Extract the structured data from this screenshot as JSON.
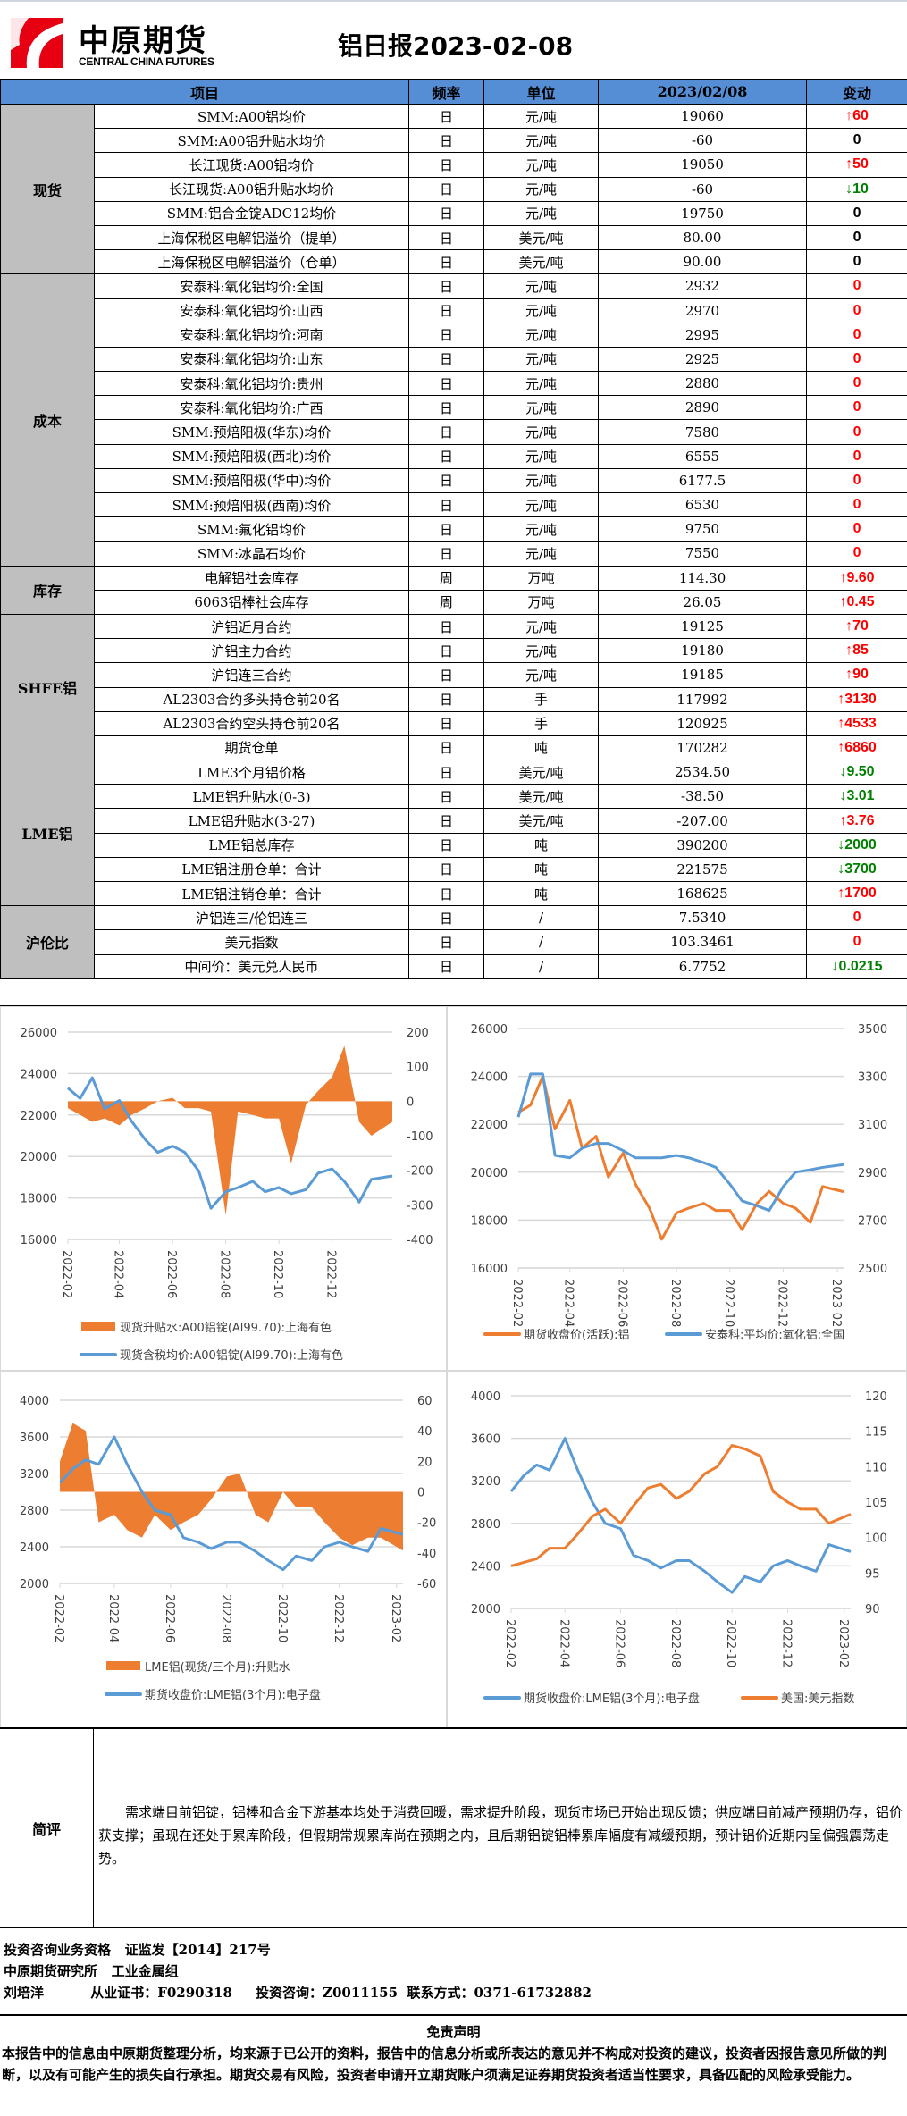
{
  "header": {
    "logo_cn": "中原期货",
    "logo_en": "CENTRAL CHINA FUTURES",
    "title": "铝日报2023-02-08",
    "brand_color": "#e60012"
  },
  "table": {
    "columns": [
      "项目",
      "频率",
      "单位",
      "2023/02/08",
      "变动"
    ],
    "header_color": "#558ed5",
    "groups": [
      {
        "category": "现货",
        "rows": [
          {
            "item": "SMM:A00铝均价",
            "freq": "日",
            "unit": "元/吨",
            "value": "19060",
            "change": "60",
            "dir": "up"
          },
          {
            "item": "SMM:A00铝升贴水均价",
            "freq": "日",
            "unit": "元/吨",
            "value": "-60",
            "change": "0",
            "dir": "flat"
          },
          {
            "item": "长江现货:A00铝均价",
            "freq": "日",
            "unit": "元/吨",
            "value": "19050",
            "change": "50",
            "dir": "up"
          },
          {
            "item": "长江现货:A00铝升贴水均价",
            "freq": "日",
            "unit": "元/吨",
            "value": "-60",
            "change": "10",
            "dir": "down"
          },
          {
            "item": "SMM:铝合金锭ADC12均价",
            "freq": "日",
            "unit": "元/吨",
            "value": "19750",
            "change": "0",
            "dir": "flat"
          },
          {
            "item": "上海保税区电解铝溢价（提单）",
            "freq": "日",
            "unit": "美元/吨",
            "value": "80.00",
            "change": "0",
            "dir": "flat"
          },
          {
            "item": "上海保税区电解铝溢价（仓单）",
            "freq": "日",
            "unit": "美元/吨",
            "value": "90.00",
            "change": "0",
            "dir": "flat"
          }
        ]
      },
      {
        "category": "成本",
        "rows": [
          {
            "item": "安泰科:氧化铝均价:全国",
            "freq": "日",
            "unit": "元/吨",
            "value": "2932",
            "change": "0",
            "dir": "flat-red"
          },
          {
            "item": "安泰科:氧化铝均价:山西",
            "freq": "日",
            "unit": "元/吨",
            "value": "2970",
            "change": "0",
            "dir": "flat-red"
          },
          {
            "item": "安泰科:氧化铝均价:河南",
            "freq": "日",
            "unit": "元/吨",
            "value": "2995",
            "change": "0",
            "dir": "flat-red"
          },
          {
            "item": "安泰科:氧化铝均价:山东",
            "freq": "日",
            "unit": "元/吨",
            "value": "2925",
            "change": "0",
            "dir": "flat-red"
          },
          {
            "item": "安泰科:氧化铝均价:贵州",
            "freq": "日",
            "unit": "元/吨",
            "value": "2880",
            "change": "0",
            "dir": "flat-red"
          },
          {
            "item": "安泰科:氧化铝均价:广西",
            "freq": "日",
            "unit": "元/吨",
            "value": "2890",
            "change": "0",
            "dir": "flat-red"
          },
          {
            "item": "SMM:预焙阳极(华东)均价",
            "freq": "日",
            "unit": "元/吨",
            "value": "7580",
            "change": "0",
            "dir": "flat-red"
          },
          {
            "item": "SMM:预焙阳极(西北)均价",
            "freq": "日",
            "unit": "元/吨",
            "value": "6555",
            "change": "0",
            "dir": "flat-red"
          },
          {
            "item": "SMM:预焙阳极(华中)均价",
            "freq": "日",
            "unit": "元/吨",
            "value": "6177.5",
            "change": "0",
            "dir": "flat-red"
          },
          {
            "item": "SMM:预焙阳极(西南)均价",
            "freq": "日",
            "unit": "元/吨",
            "value": "6530",
            "change": "0",
            "dir": "flat-red"
          },
          {
            "item": "SMM:氟化铝均价",
            "freq": "日",
            "unit": "元/吨",
            "value": "9750",
            "change": "0",
            "dir": "flat-red"
          },
          {
            "item": "SMM:冰晶石均价",
            "freq": "日",
            "unit": "元/吨",
            "value": "7550",
            "change": "0",
            "dir": "flat-red"
          }
        ]
      },
      {
        "category": "库存",
        "rows": [
          {
            "item": "电解铝社会库存",
            "freq": "周",
            "unit": "万吨",
            "value": "114.30",
            "change": "9.60",
            "dir": "up"
          },
          {
            "item": "6063铝棒社会库存",
            "freq": "周",
            "unit": "万吨",
            "value": "26.05",
            "change": "0.45",
            "dir": "up"
          }
        ]
      },
      {
        "category": "SHFE铝",
        "rows": [
          {
            "item": "沪铝近月合约",
            "freq": "日",
            "unit": "元/吨",
            "value": "19125",
            "change": "70",
            "dir": "up"
          },
          {
            "item": "沪铝主力合约",
            "freq": "日",
            "unit": "元/吨",
            "value": "19180",
            "change": "85",
            "dir": "up"
          },
          {
            "item": "沪铝连三合约",
            "freq": "日",
            "unit": "元/吨",
            "value": "19185",
            "change": "90",
            "dir": "up"
          },
          {
            "item": "AL2303合约多头持仓前20名",
            "freq": "日",
            "unit": "手",
            "value": "117992",
            "change": "3130",
            "dir": "up"
          },
          {
            "item": "AL2303合约空头持仓前20名",
            "freq": "日",
            "unit": "手",
            "value": "120925",
            "change": "4533",
            "dir": "up"
          },
          {
            "item": "期货仓单",
            "freq": "日",
            "unit": "吨",
            "value": "170282",
            "change": "6860",
            "dir": "up"
          }
        ]
      },
      {
        "category": "LME铝",
        "rows": [
          {
            "item": "LME3个月铝价格",
            "freq": "日",
            "unit": "美元/吨",
            "value": "2534.50",
            "change": "9.50",
            "dir": "down"
          },
          {
            "item": "LME铝升贴水(0-3)",
            "freq": "日",
            "unit": "美元/吨",
            "value": "-38.50",
            "change": "3.01",
            "dir": "down"
          },
          {
            "item": "LME铝升贴水(3-27)",
            "freq": "日",
            "unit": "美元/吨",
            "value": "-207.00",
            "change": "3.76",
            "dir": "up"
          },
          {
            "item": "LME铝总库存",
            "freq": "日",
            "unit": "吨",
            "value": "390200",
            "change": "2000",
            "dir": "down"
          },
          {
            "item": "LME铝注册仓单：合计",
            "freq": "日",
            "unit": "吨",
            "value": "221575",
            "change": "3700",
            "dir": "down"
          },
          {
            "item": "LME铝注销仓单：合计",
            "freq": "日",
            "unit": "吨",
            "value": "168625",
            "change": "1700",
            "dir": "up"
          }
        ]
      },
      {
        "category": "沪伦比",
        "rows": [
          {
            "item": "沪铝连三/伦铝连三",
            "freq": "日",
            "unit": "/",
            "value": "7.5340",
            "change": "0",
            "dir": "flat-red"
          },
          {
            "item": "美元指数",
            "freq": "日",
            "unit": "/",
            "value": "103.3461",
            "change": "0",
            "dir": "flat-red"
          },
          {
            "item": "中间价：美元兑人民币",
            "freq": "日",
            "unit": "/",
            "value": "6.7752",
            "change": "0.0215",
            "dir": "down"
          }
        ]
      }
    ],
    "colors": {
      "up": "#ff0000",
      "down": "#008000",
      "flat": "#000000",
      "flat-red": "#ff0000"
    }
  },
  "chart_data": [
    {
      "type": "bar+line",
      "x": [
        "2022-02-01",
        "2022-02-15",
        "2022-03-01",
        "2022-03-15",
        "2022-04-01",
        "2022-04-15",
        "2022-05-01",
        "2022-05-15",
        "2022-06-01",
        "2022-06-15",
        "2022-07-01",
        "2022-07-15",
        "2022-08-01",
        "2022-08-15",
        "2022-09-01",
        "2022-09-15",
        "2022-10-01",
        "2022-10-15",
        "2022-11-01",
        "2022-11-15",
        "2022-12-01",
        "2022-12-15",
        "2023-01-01",
        "2023-01-15",
        "2023-02-08"
      ],
      "xticks": [
        "2022-02",
        "2022-04",
        "2022-06",
        "2022-08",
        "2022-10",
        "2022-12"
      ],
      "ylim": [
        16000,
        26000
      ],
      "yticks": [
        16000,
        18000,
        20000,
        22000,
        24000,
        26000
      ],
      "y2lim": [
        -400,
        200
      ],
      "y2ticks": [
        -400,
        -300,
        -200,
        -100,
        0,
        100,
        200
      ],
      "grid": true,
      "legend": "bottom",
      "series": [
        {
          "name": "现货升贴水:A00铝锭(Al99.70):上海有色",
          "kind": "area",
          "axis": "right",
          "color": "#ed7d31",
          "values": [
            -20,
            -40,
            -60,
            -50,
            -70,
            -40,
            -20,
            0,
            10,
            -20,
            -20,
            -30,
            -330,
            -30,
            -40,
            -50,
            -50,
            -180,
            -10,
            30,
            70,
            160,
            -60,
            -100,
            -60
          ]
        },
        {
          "name": "现货含税均价:A00铝锭(Al99.70):上海有色",
          "kind": "line",
          "axis": "left",
          "color": "#5b9bd5",
          "values": [
            23300,
            22800,
            23800,
            22300,
            22700,
            21700,
            20800,
            20200,
            20500,
            20200,
            19300,
            17500,
            18300,
            18500,
            18800,
            18300,
            18500,
            18200,
            18400,
            19200,
            19400,
            18800,
            17800,
            18900,
            19060
          ]
        }
      ]
    },
    {
      "type": "line",
      "x": [
        "2022-02-01",
        "2022-02-15",
        "2022-03-01",
        "2022-03-15",
        "2022-04-01",
        "2022-04-15",
        "2022-05-01",
        "2022-05-15",
        "2022-06-01",
        "2022-06-15",
        "2022-07-01",
        "2022-07-15",
        "2022-08-01",
        "2022-08-15",
        "2022-09-01",
        "2022-09-15",
        "2022-10-01",
        "2022-10-15",
        "2022-11-01",
        "2022-11-15",
        "2022-12-01",
        "2022-12-15",
        "2023-01-01",
        "2023-01-15",
        "2023-02-08"
      ],
      "xticks": [
        "2022-02",
        "2022-04",
        "2022-06",
        "2022-08",
        "2022-10",
        "2022-12",
        "2023-02"
      ],
      "ylim": [
        16000,
        26000
      ],
      "yticks": [
        16000,
        18000,
        20000,
        22000,
        24000,
        26000
      ],
      "y2lim": [
        2500,
        3500
      ],
      "y2ticks": [
        2500,
        2700,
        2900,
        3100,
        3300,
        3500
      ],
      "grid": true,
      "legend": "bottom",
      "series": [
        {
          "name": "期货收盘价(活跃):铝",
          "kind": "line",
          "axis": "left",
          "color": "#ed7d31",
          "values": [
            22500,
            22800,
            24000,
            21800,
            23000,
            21000,
            21500,
            19800,
            20800,
            19500,
            18500,
            17200,
            18300,
            18500,
            18700,
            18400,
            18400,
            17600,
            18700,
            19200,
            18700,
            18500,
            17900,
            19400,
            19185
          ]
        },
        {
          "name": "安泰科:平均价:氧化铝:全国",
          "kind": "line",
          "axis": "right",
          "color": "#5b9bd5",
          "values": [
            3130,
            3310,
            3310,
            2970,
            2960,
            3000,
            3020,
            3020,
            2990,
            2960,
            2960,
            2960,
            2970,
            2960,
            2940,
            2920,
            2850,
            2780,
            2760,
            2740,
            2840,
            2900,
            2910,
            2920,
            2932
          ]
        }
      ]
    },
    {
      "type": "bar+line",
      "x": [
        "2022-02-01",
        "2022-02-15",
        "2022-03-01",
        "2022-03-15",
        "2022-04-01",
        "2022-04-15",
        "2022-05-01",
        "2022-05-15",
        "2022-06-01",
        "2022-06-15",
        "2022-07-01",
        "2022-07-15",
        "2022-08-01",
        "2022-08-15",
        "2022-09-01",
        "2022-09-15",
        "2022-10-01",
        "2022-10-15",
        "2022-11-01",
        "2022-11-15",
        "2022-12-01",
        "2022-12-15",
        "2023-01-01",
        "2023-01-15",
        "2023-02-08"
      ],
      "xticks": [
        "2022-02",
        "2022-04",
        "2022-06",
        "2022-08",
        "2022-10",
        "2022-12",
        "2023-02"
      ],
      "ylim": [
        2000,
        4000
      ],
      "yticks": [
        2000,
        2400,
        2800,
        3200,
        3600,
        4000
      ],
      "y2lim": [
        -60,
        60
      ],
      "y2ticks": [
        -60,
        -40,
        -20,
        0,
        20,
        40,
        60
      ],
      "grid": true,
      "legend": "bottom",
      "series": [
        {
          "name": "LME铝(现货/三个月):升贴水",
          "kind": "area",
          "axis": "right",
          "color": "#ed7d31",
          "values": [
            20,
            45,
            40,
            -20,
            -15,
            -25,
            -30,
            -15,
            -25,
            -20,
            -15,
            -5,
            10,
            12,
            -15,
            -20,
            0,
            -10,
            -10,
            -20,
            -30,
            -35,
            -30,
            -30,
            -38.5
          ]
        },
        {
          "name": "期货收盘价:LME铝(3个月):电子盘",
          "kind": "line",
          "axis": "left",
          "color": "#5b9bd5",
          "values": [
            3100,
            3250,
            3350,
            3300,
            3600,
            3300,
            3000,
            2800,
            2750,
            2500,
            2450,
            2380,
            2450,
            2450,
            2350,
            2250,
            2150,
            2300,
            2250,
            2400,
            2450,
            2400,
            2350,
            2600,
            2534
          ]
        }
      ]
    },
    {
      "type": "line",
      "x": [
        "2022-02-01",
        "2022-02-15",
        "2022-03-01",
        "2022-03-15",
        "2022-04-01",
        "2022-04-15",
        "2022-05-01",
        "2022-05-15",
        "2022-06-01",
        "2022-06-15",
        "2022-07-01",
        "2022-07-15",
        "2022-08-01",
        "2022-08-15",
        "2022-09-01",
        "2022-09-15",
        "2022-10-01",
        "2022-10-15",
        "2022-11-01",
        "2022-11-15",
        "2022-12-01",
        "2022-12-15",
        "2023-01-01",
        "2023-01-15",
        "2023-02-08"
      ],
      "xticks": [
        "2022-02",
        "2022-04",
        "2022-06",
        "2022-08",
        "2022-10",
        "2022-12",
        "2023-02"
      ],
      "ylim": [
        2000,
        4000
      ],
      "yticks": [
        2000,
        2400,
        2800,
        3200,
        3600,
        4000
      ],
      "y2lim": [
        90,
        120
      ],
      "y2ticks": [
        90,
        95,
        100,
        105,
        110,
        115,
        120
      ],
      "grid": true,
      "legend": "bottom",
      "series": [
        {
          "name": "期货收盘价:LME铝(3个月):电子盘",
          "kind": "line",
          "axis": "left",
          "color": "#5b9bd5",
          "values": [
            3100,
            3250,
            3350,
            3300,
            3600,
            3300,
            3000,
            2800,
            2750,
            2500,
            2450,
            2380,
            2450,
            2450,
            2350,
            2250,
            2150,
            2300,
            2250,
            2400,
            2450,
            2400,
            2350,
            2600,
            2534
          ]
        },
        {
          "name": "美国:美元指数",
          "kind": "line",
          "axis": "right",
          "color": "#ed7d31",
          "values": [
            96,
            96.5,
            97,
            98.5,
            98.5,
            100.5,
            103,
            104,
            102,
            104.5,
            107,
            107.5,
            105.5,
            106.5,
            109,
            110,
            113,
            112.5,
            111.5,
            106.5,
            105,
            104,
            104,
            102,
            103.3
          ]
        }
      ]
    }
  ],
  "comment": {
    "label": "简评",
    "text": "需求端目前铝锭，铝棒和合金下游基本均处于消费回暖，需求提升阶段，现货市场已开始出现反馈；供应端目前减产预期仍存，铝价获支撑；虽现在还处于累库阶段，但假期常规累库尚在预期之内，且后期铝锭铝棒累库幅度有减缓预期，预计铝价近期内呈偏强震荡走势。"
  },
  "info": {
    "line1": "投资咨询业务资格   证监发【2014】217号",
    "line2": "中原期货研究所   工业金属组",
    "line3": "刘培洋          从业证书：F0290318     投资咨询：Z0011155  联系方式：0371-61732882"
  },
  "disclaimer": {
    "title": "免责声明",
    "text": "本报告中的信息由中原期货整理分析，均来源于已公开的资料，报告中的信息分析或所表达的意见并不构成对投资的建议，投资者因报告意见所做的判断，以及有可能产生的损失自行承担。期货交易有风险，投资者申请开立期货账户须满足证券期货投资者适当性要求，具备匹配的风险承受能力。"
  }
}
